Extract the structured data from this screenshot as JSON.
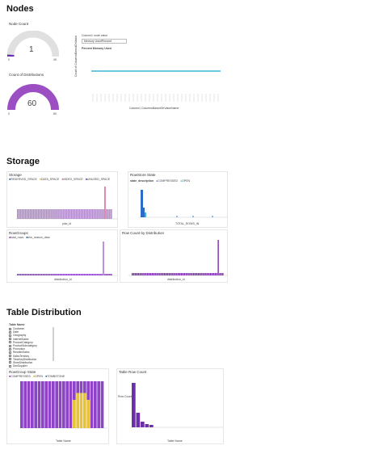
{
  "sections": {
    "nodes": "Nodes",
    "storage": "Storage",
    "table_distribution": "Table Distribution"
  },
  "node_count": {
    "title": "Node Count",
    "value": "1",
    "min": "0",
    "max": "40",
    "fraction": 0.025,
    "color": "#6b2fb3"
  },
  "dist_count": {
    "title": "Count of Distributions",
    "value": "60",
    "min": "0",
    "max": "60",
    "fraction": 1.0,
    "color": "#9c4fc2"
  },
  "column_filter": {
    "label": "Column1 node value",
    "value": "Memory UsedPercent"
  },
  "memory_chart": {
    "title": "Percent Memory Used",
    "y_label": "Count of ColumnsBasedOnValue",
    "x_label": "Column1 ColumnsBasedOnValueName"
  },
  "storage_chart": {
    "title": "Storage",
    "legend": [
      "RESERVED_SPACE",
      "DATA_SPACE",
      "INDEX_SPACE",
      "UNUSED_SPACE"
    ],
    "x_label": "pdw_id",
    "y_label": "RESERVED_SPACE, INDEX_SPACE"
  },
  "rowstore_state_chart": {
    "title": "RowStore State",
    "legend_title": "state_description",
    "legend": [
      "COMPRESSED",
      "OPEN"
    ],
    "x_label": "TOTAL_ROWS_IN",
    "y_label": "Count of state_description"
  },
  "rowgroups_chart": {
    "title": "RowGroups",
    "legend": [
      "total_rows",
      "trim_reason_desc"
    ],
    "x_label": "distribution_id",
    "y_label": "Total rows and count of trim"
  },
  "row_count_chart": {
    "title": "Row Count by Distribution",
    "x_label": "distribution_id",
    "y_label": "Row_count"
  },
  "table_filter": {
    "title": "Table Name",
    "items": [
      "Customer",
      "Date",
      "Geography",
      "InternetSales",
      "ProductCategory",
      "ProductSubcategory",
      "Promotion",
      "ResellerSales",
      "SalesTerritory",
      "TimeKeyDistribution",
      "StoreDistribution",
      "DimSupplier"
    ]
  },
  "rowgroup_state_chart": {
    "title": "RowGroup State",
    "legend": [
      "COMPRESSED",
      "OPEN",
      "TOMBSTONE"
    ],
    "x_label": "Table Name",
    "y_label": "Row or Count of RowGroup State"
  },
  "table_row_count_chart": {
    "title": "Table Row Count",
    "x_label": "Table Name",
    "y_label": "Row Count"
  },
  "colors": {
    "purple": "#8e44c7",
    "dark_purple": "#6b2fb3",
    "yellow": "#e8c33a",
    "blue": "#2b6cc4",
    "teal": "#3fb6d8",
    "pink": "#d96b9c"
  }
}
